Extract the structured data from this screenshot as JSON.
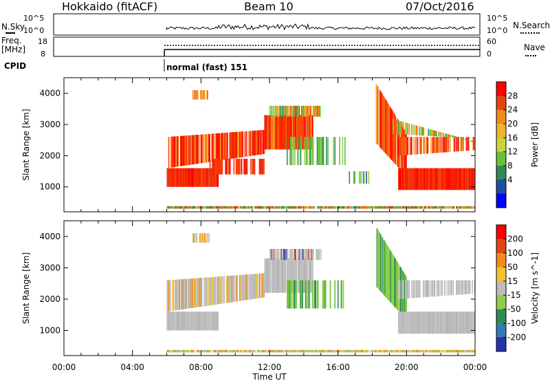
{
  "header": {
    "radar": "Hokkaido (fitACF)",
    "beam": "Beam 10",
    "date": "07/Oct/2016"
  },
  "top_panels": {
    "nsky_label": "N.Sky",
    "nsky_ticks": [
      "10^5",
      "10^0"
    ],
    "nsearch_label": "N.Search",
    "nsearch_ticks": [
      "10^5",
      "10^0"
    ],
    "freq_label_1": "Freq.",
    "freq_label_2": "[MHz]",
    "freq_ticks": [
      "18",
      "8"
    ],
    "nave_label": "Nave",
    "nave_ticks": [
      "60",
      "0"
    ],
    "cpid_label": "CPID",
    "cpid_text": "normal (fast) 151"
  },
  "chart_data": [
    {
      "type": "heatmap",
      "title": "",
      "ylabel": "Slant Range [km]",
      "xlabel": "",
      "ylim": [
        200,
        4500
      ],
      "yticks": [
        "1000",
        "2000",
        "3000",
        "4000"
      ],
      "colorbar_label": "Power [dB]",
      "colorbar_ticks": [
        "4",
        "8",
        "12",
        "16",
        "20",
        "24",
        "28"
      ],
      "colors": [
        "#0000ff",
        "#1f4fa0",
        "#2e8b57",
        "#6abf3a",
        "#c8d63a",
        "#f2b233",
        "#f28a1c",
        "#e44414",
        "#ff0000"
      ],
      "scatter_layers": [
        {
          "name": "ground",
          "color": "#e03a14",
          "ymin": 300,
          "ymax": 420,
          "x_start": 6.0,
          "x_end": 24.0
        },
        {
          "name": "main-echo",
          "color": "#ff1a00",
          "ymin": 1000,
          "ymax": 3000,
          "x_start": 6.0,
          "x_end": 14.5
        },
        {
          "name": "late-echo",
          "color": "#ff3300",
          "ymin": 1000,
          "ymax": 4300,
          "x_start": 18.4,
          "x_end": 24.0
        }
      ]
    },
    {
      "type": "heatmap",
      "title": "",
      "ylabel": "Slant Range [km]",
      "xlabel": "Time UT",
      "ylim": [
        200,
        4500
      ],
      "yticks": [
        "1000",
        "2000",
        "3000",
        "4000"
      ],
      "xticks": [
        "00:00",
        "04:00",
        "08:00",
        "12:00",
        "16:00",
        "20:00",
        "00:00"
      ],
      "colorbar_label": "Velocity [m s^-1]",
      "colorbar_ticks": [
        "200",
        "100",
        "50",
        "15",
        "-15",
        "-50",
        "-100",
        "-200"
      ],
      "colors": [
        "#2233aa",
        "#337ab7",
        "#2e8b57",
        "#8fcf4a",
        "#bdbdbd",
        "#f2c230",
        "#f28a1c",
        "#e44414",
        "#ff0000"
      ]
    }
  ],
  "time_axis": {
    "xlabel": "Time UT",
    "ticks": [
      "00:00",
      "04:00",
      "08:00",
      "12:00",
      "16:00",
      "20:00",
      "00:00"
    ]
  }
}
